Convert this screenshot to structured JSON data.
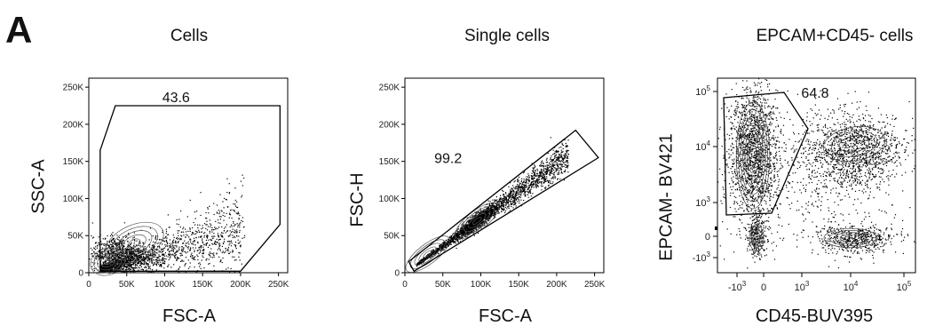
{
  "panel_label": "A",
  "chart_data": [
    {
      "type": "scatter",
      "subtype": "flow-cytometry-density-dot-plot",
      "title": "Cells",
      "xlabel": "FSC-A",
      "ylabel": "SSC-A",
      "xlim": [
        0,
        262144
      ],
      "ylim": [
        0,
        262144
      ],
      "x_ticks": [
        0,
        50000,
        100000,
        150000,
        200000,
        250000
      ],
      "x_tick_labels": [
        "0",
        "50K",
        "100K",
        "150K",
        "200K",
        "250K"
      ],
      "y_ticks": [
        0,
        50000,
        100000,
        150000,
        200000,
        250000
      ],
      "y_tick_labels": [
        "0",
        "50K",
        "100K",
        "150K",
        "200K",
        "250K"
      ],
      "gate_label": "43.6",
      "gate_percent": 43.6,
      "gate_vertices": [
        [
          15000,
          165000
        ],
        [
          35000,
          225000
        ],
        [
          252000,
          225000
        ],
        [
          252000,
          65000
        ],
        [
          200000,
          2000
        ],
        [
          15000,
          2000
        ]
      ],
      "population_centers": [
        [
          25000,
          15000
        ],
        [
          60000,
          40000
        ]
      ]
    },
    {
      "type": "scatter",
      "subtype": "flow-cytometry-density-dot-plot",
      "title": "Single cells",
      "xlabel": "FSC-A",
      "ylabel": "FSC-H",
      "xlim": [
        0,
        262144
      ],
      "ylim": [
        0,
        262144
      ],
      "x_ticks": [
        0,
        50000,
        100000,
        150000,
        200000,
        250000
      ],
      "x_tick_labels": [
        "0",
        "50K",
        "100K",
        "150K",
        "200K",
        "250K"
      ],
      "y_ticks": [
        0,
        50000,
        100000,
        150000,
        200000,
        250000
      ],
      "y_tick_labels": [
        "0",
        "50K",
        "100K",
        "150K",
        "200K",
        "250K"
      ],
      "gate_label": "99.2",
      "gate_percent": 99.2,
      "gate_vertices": [
        [
          5000,
          15000
        ],
        [
          225000,
          192000
        ],
        [
          255000,
          155000
        ],
        [
          12000,
          2000
        ]
      ],
      "population_centers": [
        [
          30000,
          25000
        ],
        [
          95000,
          70000
        ]
      ]
    },
    {
      "type": "scatter",
      "subtype": "flow-cytometry-density-dot-plot",
      "title": "EPCAM+CD45- cells",
      "xlabel": "CD45-BUV395",
      "ylabel": "EPCAM- BV421",
      "scale": "biexponential",
      "x_tick_labels": [
        "-10^3",
        "0",
        "10^3",
        "10^4",
        "10^5"
      ],
      "y_tick_labels": [
        "-10^3",
        "0",
        "10^3",
        "10^4",
        "10^5"
      ],
      "gate_label": "64.8",
      "gate_percent": 64.8,
      "populations": [
        "CD45- EPCAM+",
        "CD45+ EPCAM+",
        "CD45+ EPCAM-",
        "CD45- EPCAM-"
      ]
    }
  ]
}
